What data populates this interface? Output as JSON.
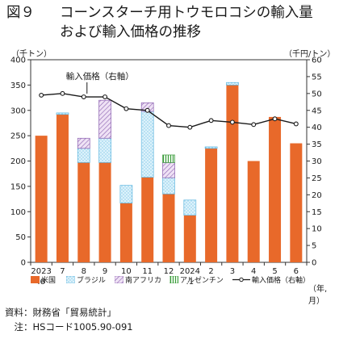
{
  "title": {
    "number": "図９",
    "line1": "コーンスターチ用トウモロコシの輸入量",
    "line2": "および輸入価格の推移"
  },
  "units": {
    "left": "（千トン）",
    "right": "（千円/トン）",
    "x": "（年,月）"
  },
  "notes": {
    "source": "資料：財務省「貿易統計」",
    "note": "　注：HSコード1005.90-091"
  },
  "colors": {
    "usa": "#e8692a",
    "brazil": "#ddf2fb",
    "brazil_pattern": "#5fb7e0",
    "south_africa": "#efe2f5",
    "south_africa_pattern": "#8a5fb0",
    "argentina": "#e6f5e6",
    "argentina_pattern": "#3a9a3a",
    "price_line": "#1a1a1a"
  },
  "chart_data": {
    "type": "bar",
    "stacked": true,
    "categories": [
      "2023\n.6",
      "7",
      "8",
      "9",
      "10",
      "11",
      "12",
      "2024\n.1",
      "2",
      "3",
      "4",
      "5",
      "6"
    ],
    "series": [
      {
        "name": "米国",
        "values": [
          250,
          292,
          197,
          197,
          117,
          168,
          135,
          93,
          225,
          350,
          200,
          287,
          235
        ]
      },
      {
        "name": "ブラジル",
        "values": [
          0,
          3,
          28,
          48,
          35,
          130,
          32,
          30,
          3,
          5,
          0,
          0,
          0
        ]
      },
      {
        "name": "南アフリカ",
        "values": [
          0,
          0,
          20,
          75,
          0,
          17,
          30,
          0,
          0,
          0,
          0,
          0,
          0
        ]
      },
      {
        "name": "アルゼンチン",
        "values": [
          0,
          0,
          0,
          0,
          0,
          0,
          15,
          0,
          0,
          0,
          0,
          0,
          0
        ]
      }
    ],
    "line_series": {
      "name": "輸入価格（右軸）",
      "axis": "right",
      "values": [
        49.5,
        50,
        49,
        49,
        45.5,
        45,
        40.5,
        40,
        42,
        41.5,
        40.8,
        42.5,
        41
      ]
    },
    "line_label": "輸入価格（右軸）",
    "ylim_left": [
      0,
      400
    ],
    "yticks_left": [
      0,
      50,
      100,
      150,
      200,
      250,
      300,
      350,
      400
    ],
    "ylim_right": [
      0,
      60
    ],
    "yticks_right": [
      0,
      5,
      10,
      15,
      20,
      25,
      30,
      35,
      40,
      45,
      50,
      55,
      60
    ],
    "legend": [
      "米国",
      "ブラジル",
      "南アフリカ",
      "アルゼンチン",
      "輸入価格（右軸）"
    ],
    "legend_position": "bottom",
    "grid": false
  }
}
